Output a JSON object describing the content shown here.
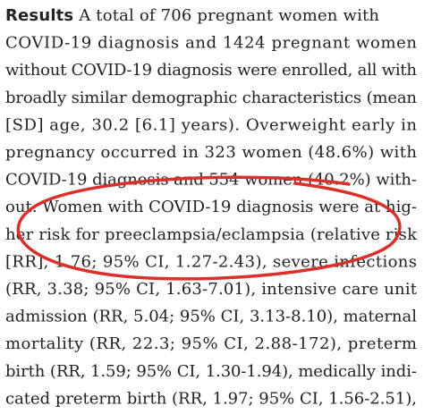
{
  "paragraph": {
    "label": "Results",
    "lines": [
      " A total of 706 pregnant women with",
      "COVID-19 diagnosis and 1424 pregnant women",
      "without COVID-19 diagnosis were enrolled, all with",
      "broadly similar demographic characteristics (mean",
      "[SD] age, 30.2 [6.1] years). Overweight early in",
      "pregnancy occurred in 323 women (48.6%) with",
      "COVID-19 diagnosis and 554 women (40.2%) with-",
      "out. Women with COVID-19 diagnosis were at hig-",
      "her risk for preeclampsia/eclampsia (relative risk",
      "[RR], 1.76; 95% CI, 1.27-2.43), severe infections",
      "(RR, 3.38; 95% CI, 1.63-7.01), intensive care unit",
      "admission (RR, 5.04; 95% CI, 3.13-8.10), maternal",
      "mortality (RR, 22.3; 95% CI, 2.88-172), preterm",
      "birth (RR, 1.59; 95% CI, 1.30-1.94), medically indi-",
      "cated preterm birth (RR, 1.97; 95% CI, 1.56-2.51),"
    ]
  }
}
